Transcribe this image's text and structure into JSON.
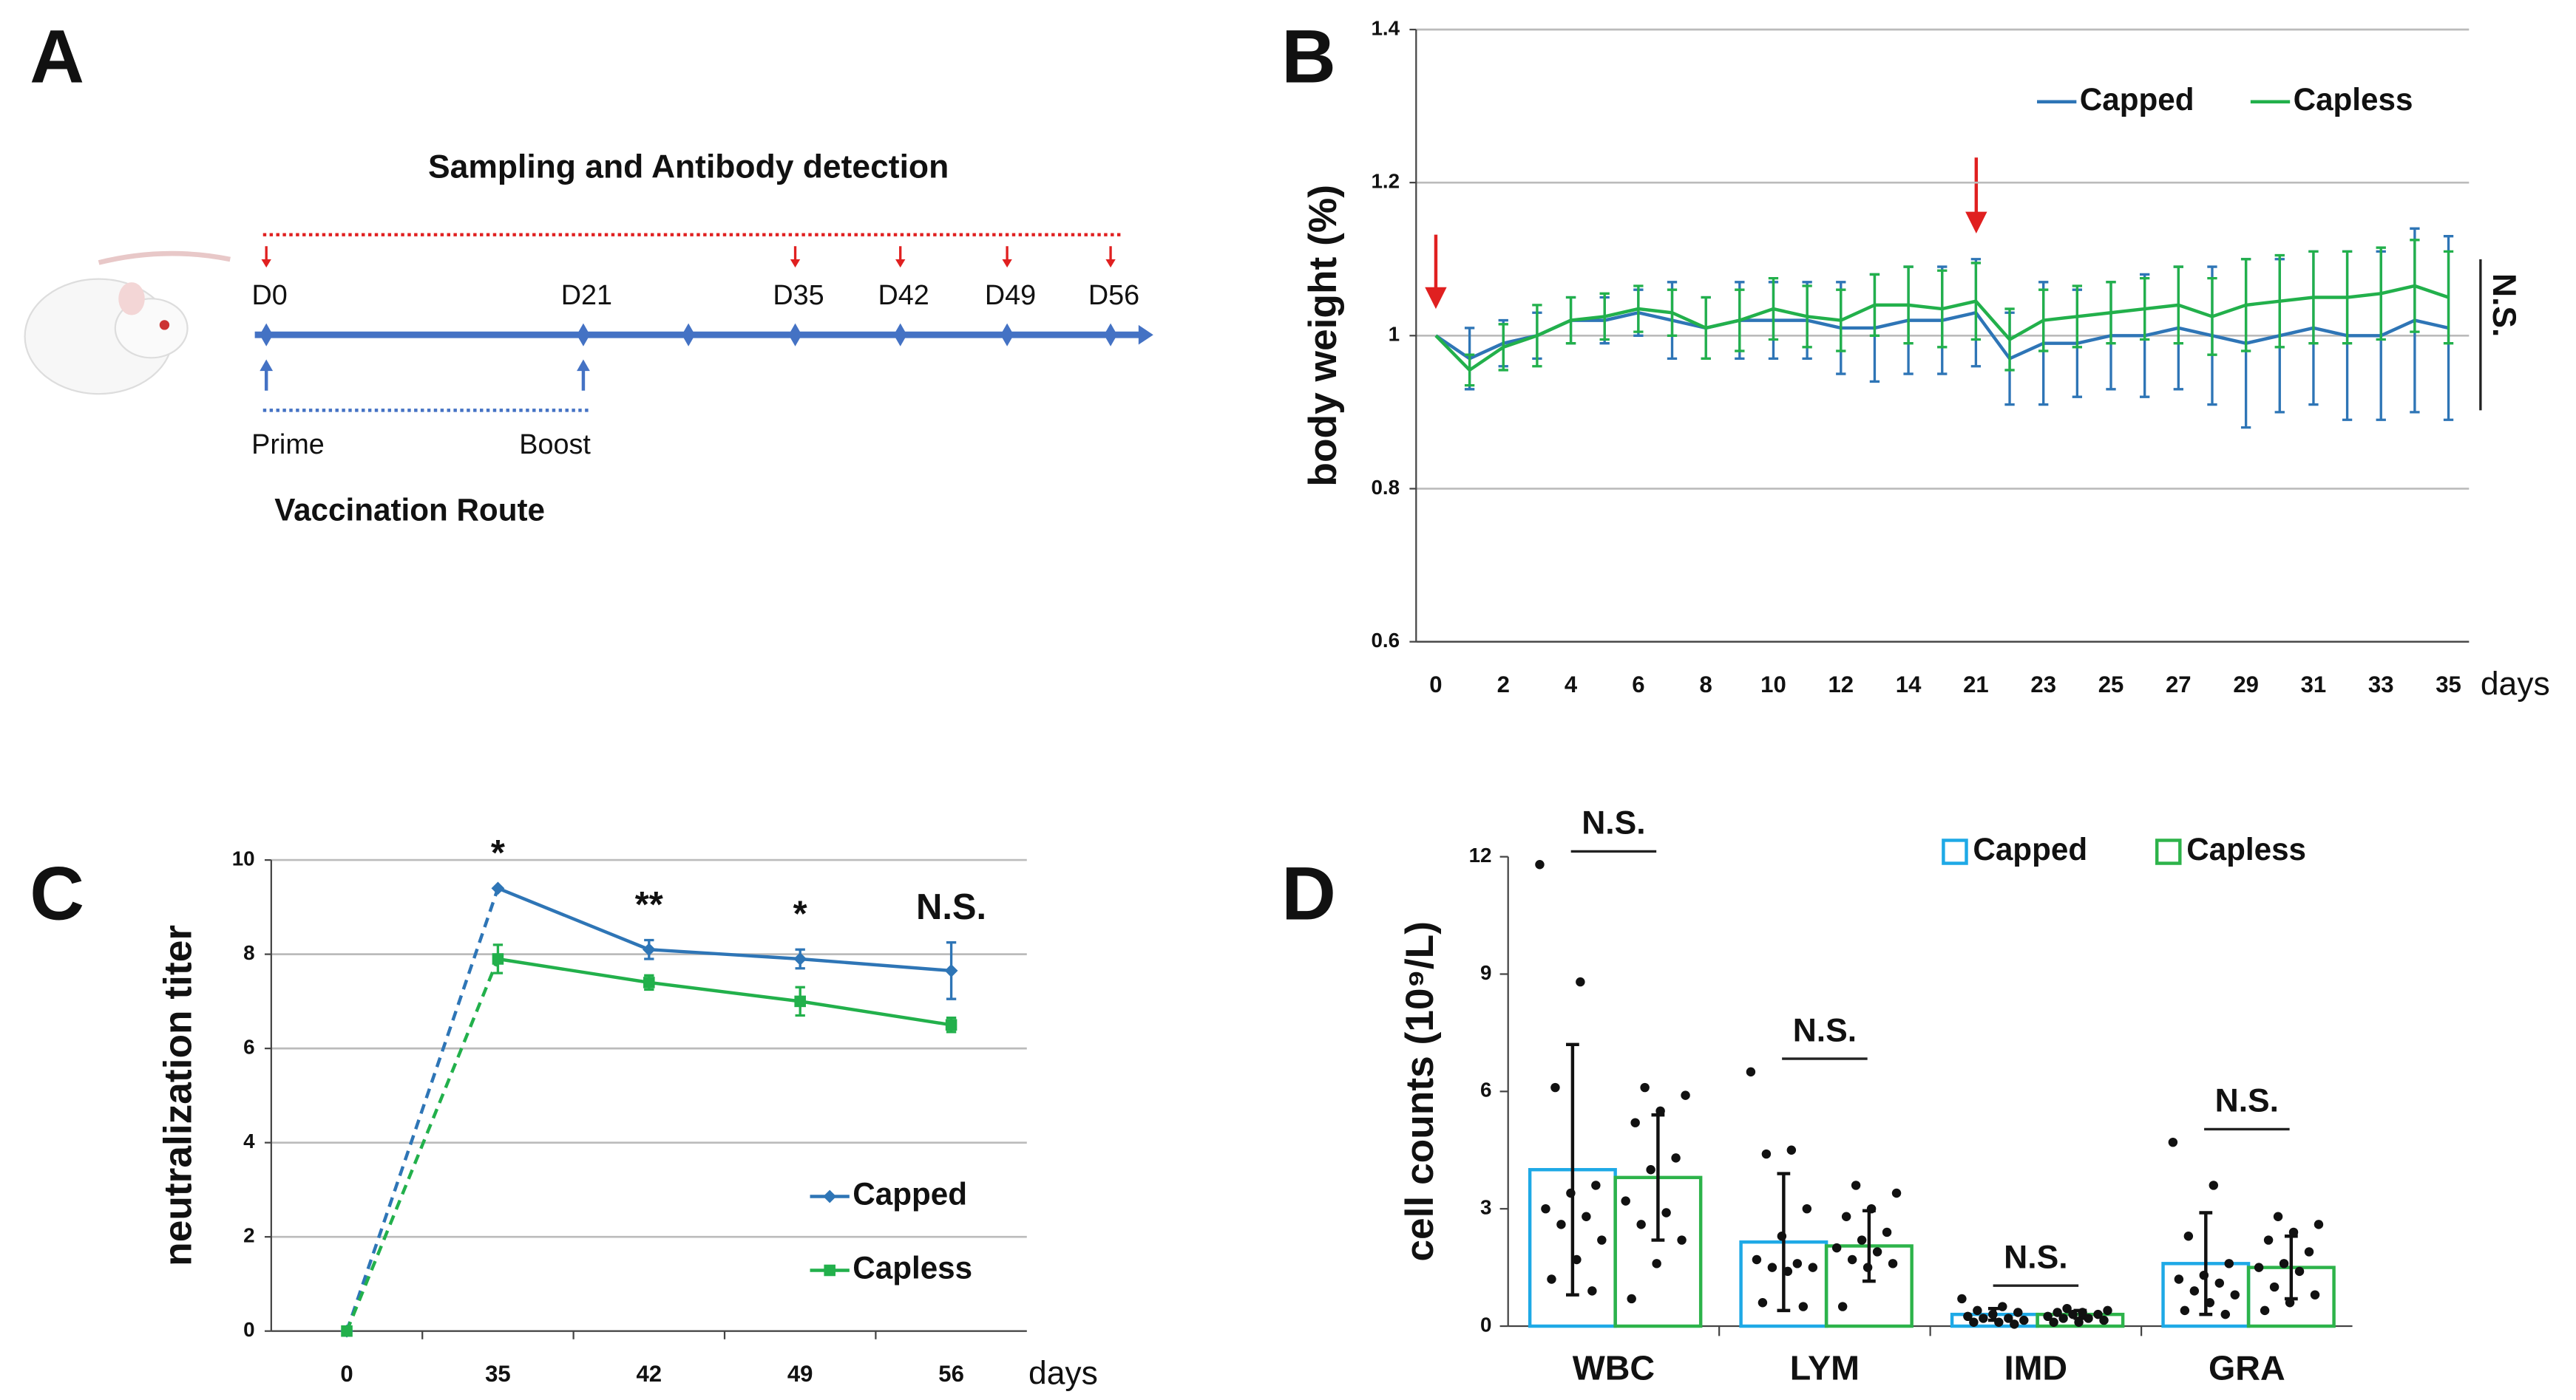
{
  "panel_labels": [
    "A",
    "B",
    "C",
    "D"
  ],
  "diagram": {
    "title": "Sampling and Antibody detection",
    "timepoints": [
      "D0",
      "D21",
      "D35",
      "D42",
      "D49",
      "D56"
    ],
    "vaccinations": [
      "Prime",
      "Boost"
    ],
    "route_label": "Vaccination Route"
  },
  "chart_data": [
    {
      "type": "line",
      "y_label": "body weight (%)",
      "x_label": "days",
      "categories": [
        0,
        null,
        2,
        null,
        4,
        null,
        6,
        null,
        8,
        null,
        10,
        null,
        12,
        null,
        14,
        null,
        21,
        null,
        23,
        null,
        25,
        null,
        27,
        null,
        29,
        null,
        31,
        null,
        33,
        null,
        35
      ],
      "series": [
        {
          "name": "Capped",
          "color": "#2e75b6",
          "values": [
            1,
            0.97,
            0.99,
            1,
            1.02,
            1.02,
            1.03,
            1.02,
            1.01,
            1.02,
            1.02,
            1.02,
            1.01,
            1.01,
            1.02,
            1.02,
            1.03,
            0.97,
            0.99,
            0.99,
            1,
            1,
            1.01,
            1,
            0.99,
            1,
            1.01,
            1,
            1,
            1.02,
            1.01
          ],
          "errors": [
            0,
            0.04,
            0.03,
            0.03,
            0.03,
            0.03,
            0.03,
            0.05,
            0.04,
            0.05,
            0.05,
            0.05,
            0.06,
            0.07,
            0.07,
            0.07,
            0.07,
            0.06,
            0.08,
            0.07,
            0.07,
            0.08,
            0.08,
            0.09,
            0.11,
            0.1,
            0.1,
            0.11,
            0.11,
            0.12,
            0.12
          ]
        },
        {
          "name": "Capless",
          "color": "#22b04b",
          "values": [
            1,
            0.955,
            0.985,
            1,
            1.02,
            1.025,
            1.035,
            1.03,
            1.01,
            1.02,
            1.035,
            1.025,
            1.02,
            1.04,
            1.04,
            1.035,
            1.045,
            0.995,
            1.02,
            1.025,
            1.03,
            1.035,
            1.04,
            1.025,
            1.04,
            1.045,
            1.05,
            1.05,
            1.055,
            1.065,
            1.05
          ],
          "errors": [
            0,
            0.02,
            0.03,
            0.04,
            0.03,
            0.03,
            0.03,
            0.03,
            0.04,
            0.04,
            0.04,
            0.04,
            0.04,
            0.04,
            0.05,
            0.05,
            0.05,
            0.04,
            0.04,
            0.04,
            0.04,
            0.04,
            0.05,
            0.05,
            0.06,
            0.06,
            0.06,
            0.06,
            0.06,
            0.06,
            0.06
          ]
        }
      ],
      "ylim": [
        0.6,
        1.4
      ],
      "yticks": [
        0.6,
        0.8,
        1,
        1.2,
        1.4
      ],
      "grid": true,
      "annotation": "N.S.",
      "legend": "upper right"
    },
    {
      "type": "line",
      "y_label": "neutralization titer",
      "x_label": "days",
      "categories": [
        0,
        35,
        42,
        49,
        56
      ],
      "series": [
        {
          "name": "Capped",
          "color": "#2e75b6",
          "values": [
            0,
            9.4,
            8.1,
            7.9,
            7.65
          ],
          "errors": [
            0,
            0,
            0.2,
            0.2,
            0.6
          ]
        },
        {
          "name": "Capless",
          "color": "#22b04b",
          "values": [
            0,
            7.9,
            7.4,
            7.0,
            6.5
          ],
          "errors": [
            0,
            0.3,
            0.15,
            0.3,
            0.15
          ]
        }
      ],
      "ylim": [
        0,
        10
      ],
      "yticks": [
        0,
        2,
        4,
        6,
        8,
        10
      ],
      "grid": true,
      "annotations": [
        "*",
        "**",
        "*",
        "N.S."
      ],
      "legend": "lower right"
    },
    {
      "type": "bar",
      "y_label": "cell counts (10⁹/L)",
      "categories": [
        "WBC",
        "LYM",
        "IMD",
        "GRA"
      ],
      "series": [
        {
          "name": "Capped",
          "color": "#1ea9e6",
          "values": [
            4.0,
            2.15,
            0.3,
            1.6
          ],
          "errors": [
            3.2,
            1.75,
            0.15,
            1.3
          ],
          "points": [
            [
              11.8,
              8.8,
              6.1,
              3.6,
              3.4,
              3.0,
              2.8,
              2.6,
              2.2,
              1.7,
              1.2,
              0.9
            ],
            [
              6.5,
              4.5,
              4.4,
              3.0,
              2.3,
              1.7,
              1.6,
              1.5,
              1.5,
              1.4,
              0.6,
              0.5
            ],
            [
              0.7,
              0.5,
              0.4,
              0.35,
              0.3,
              0.25,
              0.2,
              0.2,
              0.15,
              0.1,
              0.1,
              0.05
            ],
            [
              4.7,
              3.6,
              2.3,
              1.6,
              1.3,
              1.2,
              1.1,
              0.9,
              0.8,
              0.6,
              0.4,
              0.3
            ]
          ]
        },
        {
          "name": "Capless",
          "color": "#2db34a",
          "values": [
            3.8,
            2.05,
            0.3,
            1.5
          ],
          "errors": [
            1.6,
            0.9,
            0.1,
            0.8
          ],
          "points": [
            [
              6.1,
              5.9,
              5.5,
              5.2,
              4.3,
              4.0,
              3.2,
              2.9,
              2.6,
              2.2,
              1.6,
              0.7
            ],
            [
              3.6,
              3.4,
              3.0,
              2.8,
              2.4,
              2.2,
              2.0,
              1.9,
              1.7,
              1.6,
              1.5,
              0.5
            ],
            [
              0.45,
              0.4,
              0.35,
              0.35,
              0.3,
              0.3,
              0.25,
              0.2,
              0.2,
              0.15,
              0.1,
              0.1
            ],
            [
              2.8,
              2.6,
              2.4,
              2.2,
              1.9,
              1.6,
              1.5,
              1.4,
              1.0,
              0.8,
              0.6,
              0.4
            ]
          ]
        }
      ],
      "ylim": [
        0,
        12
      ],
      "yticks": [
        0,
        3,
        6,
        9,
        12
      ],
      "annotations": [
        "N.S.",
        "N.S.",
        "N.S.",
        "N.S."
      ],
      "legend": "upper center"
    }
  ]
}
